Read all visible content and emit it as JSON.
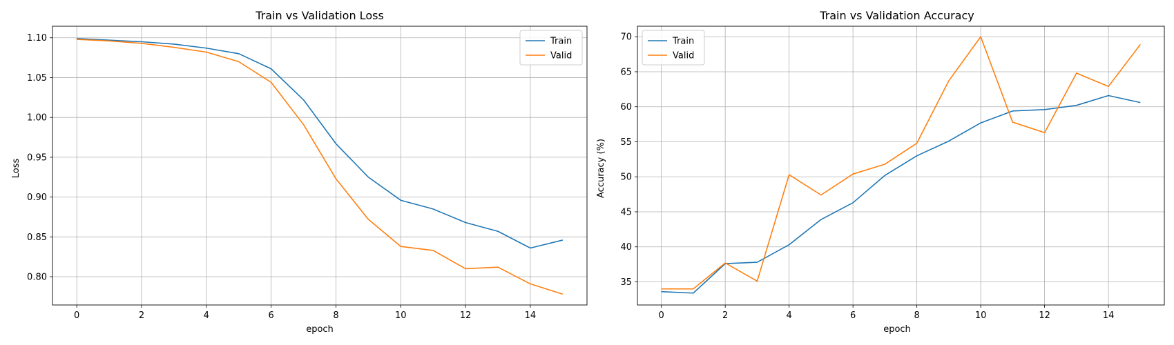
{
  "chart_data": [
    {
      "type": "line",
      "title": "Train vs Validation Loss",
      "xlabel": "epoch",
      "ylabel": "Loss",
      "xlim": [
        -0.75,
        15.75
      ],
      "ylim": [
        0.7645,
        1.1145
      ],
      "xticks": [
        0,
        2,
        4,
        6,
        8,
        10,
        12,
        14
      ],
      "yticks": [
        0.8,
        0.85,
        0.9,
        0.95,
        1.0,
        1.05,
        1.1
      ],
      "ytick_labels": [
        "0.80",
        "0.85",
        "0.90",
        "0.95",
        "1.00",
        "1.05",
        "1.10"
      ],
      "grid": true,
      "legend_position": "top-right",
      "x": [
        0,
        1,
        2,
        3,
        4,
        5,
        6,
        7,
        8,
        9,
        10,
        11,
        12,
        13,
        14,
        15
      ],
      "series": [
        {
          "name": "Train",
          "color": "#1f77b4",
          "values": [
            1.099,
            1.097,
            1.095,
            1.092,
            1.087,
            1.08,
            1.061,
            1.022,
            0.967,
            0.925,
            0.896,
            0.885,
            0.868,
            0.857,
            0.836,
            0.846
          ]
        },
        {
          "name": "Valid",
          "color": "#ff7f0e",
          "values": [
            1.098,
            1.096,
            1.093,
            1.088,
            1.082,
            1.07,
            1.044,
            0.991,
            0.923,
            0.872,
            0.838,
            0.833,
            0.81,
            0.812,
            0.791,
            0.778
          ]
        }
      ]
    },
    {
      "type": "line",
      "title": "Train vs Validation Accuracy",
      "xlabel": "epoch",
      "ylabel": "Accuracy (%)",
      "xlim": [
        -0.75,
        15.75
      ],
      "ylim": [
        31.7,
        71.5
      ],
      "xticks": [
        0,
        2,
        4,
        6,
        8,
        10,
        12,
        14
      ],
      "yticks": [
        35,
        40,
        45,
        50,
        55,
        60,
        65,
        70
      ],
      "ytick_labels": [
        "35",
        "40",
        "45",
        "50",
        "55",
        "60",
        "65",
        "70"
      ],
      "grid": true,
      "legend_position": "top-left",
      "x": [
        0,
        1,
        2,
        3,
        4,
        5,
        6,
        7,
        8,
        9,
        10,
        11,
        12,
        13,
        14,
        15
      ],
      "series": [
        {
          "name": "Train",
          "color": "#1f77b4",
          "values": [
            33.6,
            33.4,
            37.6,
            37.8,
            40.3,
            43.9,
            46.3,
            50.2,
            53.0,
            55.1,
            57.7,
            59.4,
            59.6,
            60.2,
            61.6,
            60.6
          ]
        },
        {
          "name": "Valid",
          "color": "#ff7f0e",
          "values": [
            34.0,
            34.0,
            37.7,
            35.1,
            50.3,
            47.4,
            50.4,
            51.8,
            54.8,
            63.7,
            70.0,
            57.8,
            56.3,
            64.8,
            62.9,
            68.9
          ]
        }
      ]
    }
  ]
}
